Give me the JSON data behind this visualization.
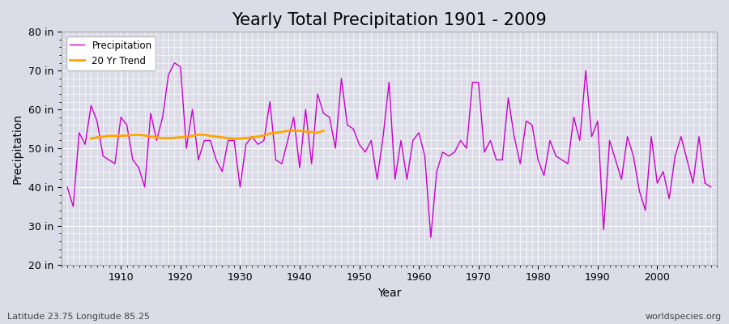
{
  "title": "Yearly Total Precipitation 1901 - 2009",
  "xlabel": "Year",
  "ylabel": "Precipitation",
  "subtitle_left": "Latitude 23.75 Longitude 85.25",
  "subtitle_right": "worldspecies.org",
  "ylim": [
    20,
    80
  ],
  "yticks": [
    20,
    30,
    40,
    50,
    60,
    70,
    80
  ],
  "ytick_labels": [
    "20 in",
    "30 in",
    "40 in",
    "50 in",
    "60 in",
    "70 in",
    "80 in"
  ],
  "years": [
    1901,
    1902,
    1903,
    1904,
    1905,
    1906,
    1907,
    1908,
    1909,
    1910,
    1911,
    1912,
    1913,
    1914,
    1915,
    1916,
    1917,
    1918,
    1919,
    1920,
    1921,
    1922,
    1923,
    1924,
    1925,
    1926,
    1927,
    1928,
    1929,
    1930,
    1931,
    1932,
    1933,
    1934,
    1935,
    1936,
    1937,
    1938,
    1939,
    1940,
    1941,
    1942,
    1943,
    1944,
    1945,
    1946,
    1947,
    1948,
    1949,
    1950,
    1951,
    1952,
    1953,
    1954,
    1955,
    1956,
    1957,
    1958,
    1959,
    1960,
    1961,
    1962,
    1963,
    1964,
    1965,
    1966,
    1967,
    1968,
    1969,
    1970,
    1971,
    1972,
    1973,
    1974,
    1975,
    1976,
    1977,
    1978,
    1979,
    1980,
    1981,
    1982,
    1983,
    1984,
    1985,
    1986,
    1987,
    1988,
    1989,
    1990,
    1991,
    1992,
    1993,
    1994,
    1995,
    1996,
    1997,
    1998,
    1999,
    2000,
    2001,
    2002,
    2003,
    2004,
    2005,
    2006,
    2007,
    2008,
    2009
  ],
  "precipitation": [
    40,
    35,
    54,
    51,
    61,
    57,
    48,
    47,
    46,
    58,
    56,
    47,
    45,
    40,
    59,
    52,
    58,
    69,
    72,
    71,
    50,
    60,
    47,
    52,
    52,
    47,
    44,
    52,
    52,
    40,
    51,
    53,
    51,
    52,
    62,
    47,
    46,
    52,
    58,
    45,
    60,
    46,
    64,
    59,
    58,
    50,
    68,
    56,
    55,
    51,
    49,
    52,
    42,
    53,
    67,
    42,
    52,
    42,
    52,
    54,
    48,
    27,
    44,
    49,
    48,
    49,
    52,
    50,
    67,
    67,
    49,
    52,
    47,
    47,
    63,
    53,
    46,
    57,
    56,
    47,
    43,
    52,
    48,
    47,
    46,
    58,
    52,
    70,
    53,
    57,
    29,
    52,
    47,
    42,
    53,
    48,
    39,
    34,
    53,
    41,
    44,
    37,
    48,
    53,
    47,
    41,
    53,
    41,
    40
  ],
  "trend_years": [
    1905,
    1906,
    1907,
    1908,
    1909,
    1910,
    1911,
    1912,
    1913,
    1914,
    1915,
    1916,
    1917,
    1918,
    1919,
    1920,
    1921,
    1922,
    1923,
    1924,
    1925,
    1926,
    1927,
    1928,
    1929,
    1930,
    1931,
    1932,
    1933,
    1934,
    1935,
    1936,
    1937,
    1938,
    1939,
    1940,
    1941,
    1942,
    1943,
    1944
  ],
  "trend_values": [
    52.5,
    52.8,
    53.0,
    53.2,
    53.2,
    53.2,
    53.3,
    53.4,
    53.5,
    53.3,
    53.0,
    52.8,
    52.6,
    52.6,
    52.7,
    52.8,
    53.0,
    53.2,
    53.5,
    53.5,
    53.2,
    53.0,
    52.8,
    52.6,
    52.5,
    52.5,
    52.6,
    52.8,
    53.0,
    53.3,
    53.8,
    54.0,
    54.2,
    54.5,
    54.5,
    54.5,
    54.3,
    54.2,
    54.0,
    54.5
  ],
  "line_color": "#CC00CC",
  "trend_color": "#FFA500",
  "background_color": "#DCDCE8",
  "plot_bg_color": "#DCDCE8",
  "grid_color": "#FFFFFF",
  "title_fontsize": 15,
  "axis_fontsize": 10,
  "tick_fontsize": 9
}
